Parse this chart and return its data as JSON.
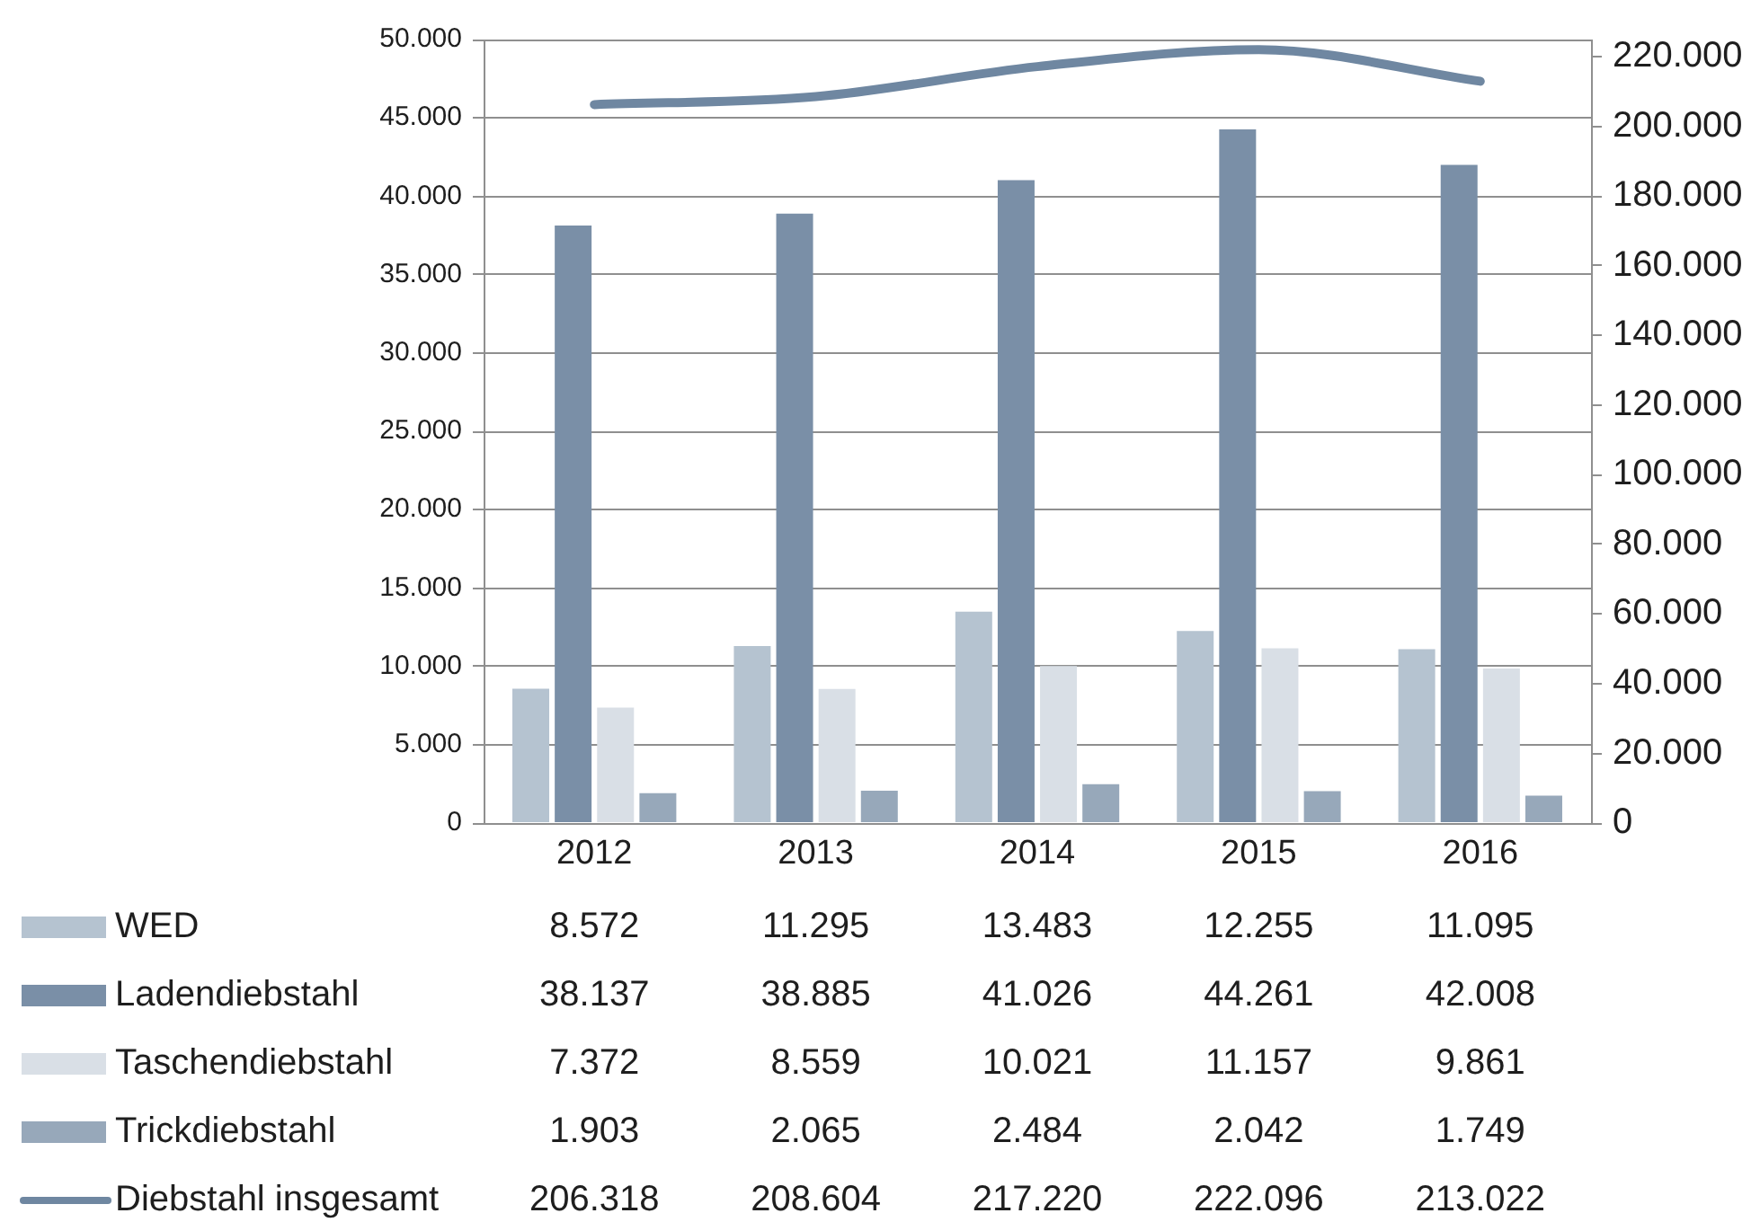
{
  "chart_data": {
    "type": "bar",
    "categories": [
      "2012",
      "2013",
      "2014",
      "2015",
      "2016"
    ],
    "series": [
      {
        "name": "WED",
        "color": "#b5c3d0",
        "values": [
          8572,
          11295,
          13483,
          12255,
          11095
        ],
        "value_labels": [
          "8.572",
          "11.295",
          "13.483",
          "12.255",
          "11.095"
        ]
      },
      {
        "name": "Ladendiebstahl",
        "color": "#7a8fa7",
        "values": [
          38137,
          38885,
          41026,
          44261,
          42008
        ],
        "value_labels": [
          "38.137",
          "38.885",
          "41.026",
          "44.261",
          "42.008"
        ]
      },
      {
        "name": "Taschendiebstahl",
        "color": "#d9dfe6",
        "values": [
          7372,
          8559,
          10021,
          11157,
          9861
        ],
        "value_labels": [
          "7.372",
          "8.559",
          "10.021",
          "11.157",
          "9.861"
        ]
      },
      {
        "name": "Trickdiebstahl",
        "color": "#97a8ba",
        "values": [
          1903,
          2065,
          2484,
          2042,
          1749
        ],
        "value_labels": [
          "1.903",
          "2.065",
          "2.484",
          "2.042",
          "1.749"
        ]
      },
      {
        "name": "Diebstahl insgesamt",
        "type": "line",
        "axis": "y2",
        "color": "#6f87a1",
        "values": [
          206318,
          208604,
          217220,
          222096,
          213022
        ],
        "value_labels": [
          "206.318",
          "208.604",
          "217.220",
          "222.096",
          "213.022"
        ]
      }
    ],
    "ylim": [
      0,
      50000
    ],
    "yticks": [
      0,
      {
        "value": 5000,
        "label": "5.000"
      },
      {
        "value": 10000,
        "label": "10.000"
      },
      {
        "value": 15000,
        "label": "15.000"
      },
      {
        "value": 20000,
        "label": "20.000"
      },
      {
        "value": 25000,
        "label": "25.000"
      },
      {
        "value": 30000,
        "label": "30.000"
      },
      {
        "value": 35000,
        "label": "35.000"
      },
      {
        "value": 40000,
        "label": "40.000"
      },
      {
        "value": 45000,
        "label": "45.000"
      },
      {
        "value": 50000,
        "label": "50.000"
      }
    ],
    "y2lim": [
      0,
      225000
    ],
    "y2ticks": [
      0,
      {
        "value": 20000,
        "label": "20.000"
      },
      {
        "value": 40000,
        "label": "40.000"
      },
      {
        "value": 60000,
        "label": "60.000"
      },
      {
        "value": 80000,
        "label": "80.000"
      },
      {
        "value": 100000,
        "label": "100.000"
      },
      {
        "value": 120000,
        "label": "120.000"
      },
      {
        "value": 140000,
        "label": "140.000"
      },
      {
        "value": 160000,
        "label": "160.000"
      },
      {
        "value": 180000,
        "label": "180.000"
      },
      {
        "value": 200000,
        "label": "200.000"
      },
      {
        "value": 220000,
        "label": "220.000"
      }
    ],
    "grid": "y",
    "legend": "bottom"
  }
}
